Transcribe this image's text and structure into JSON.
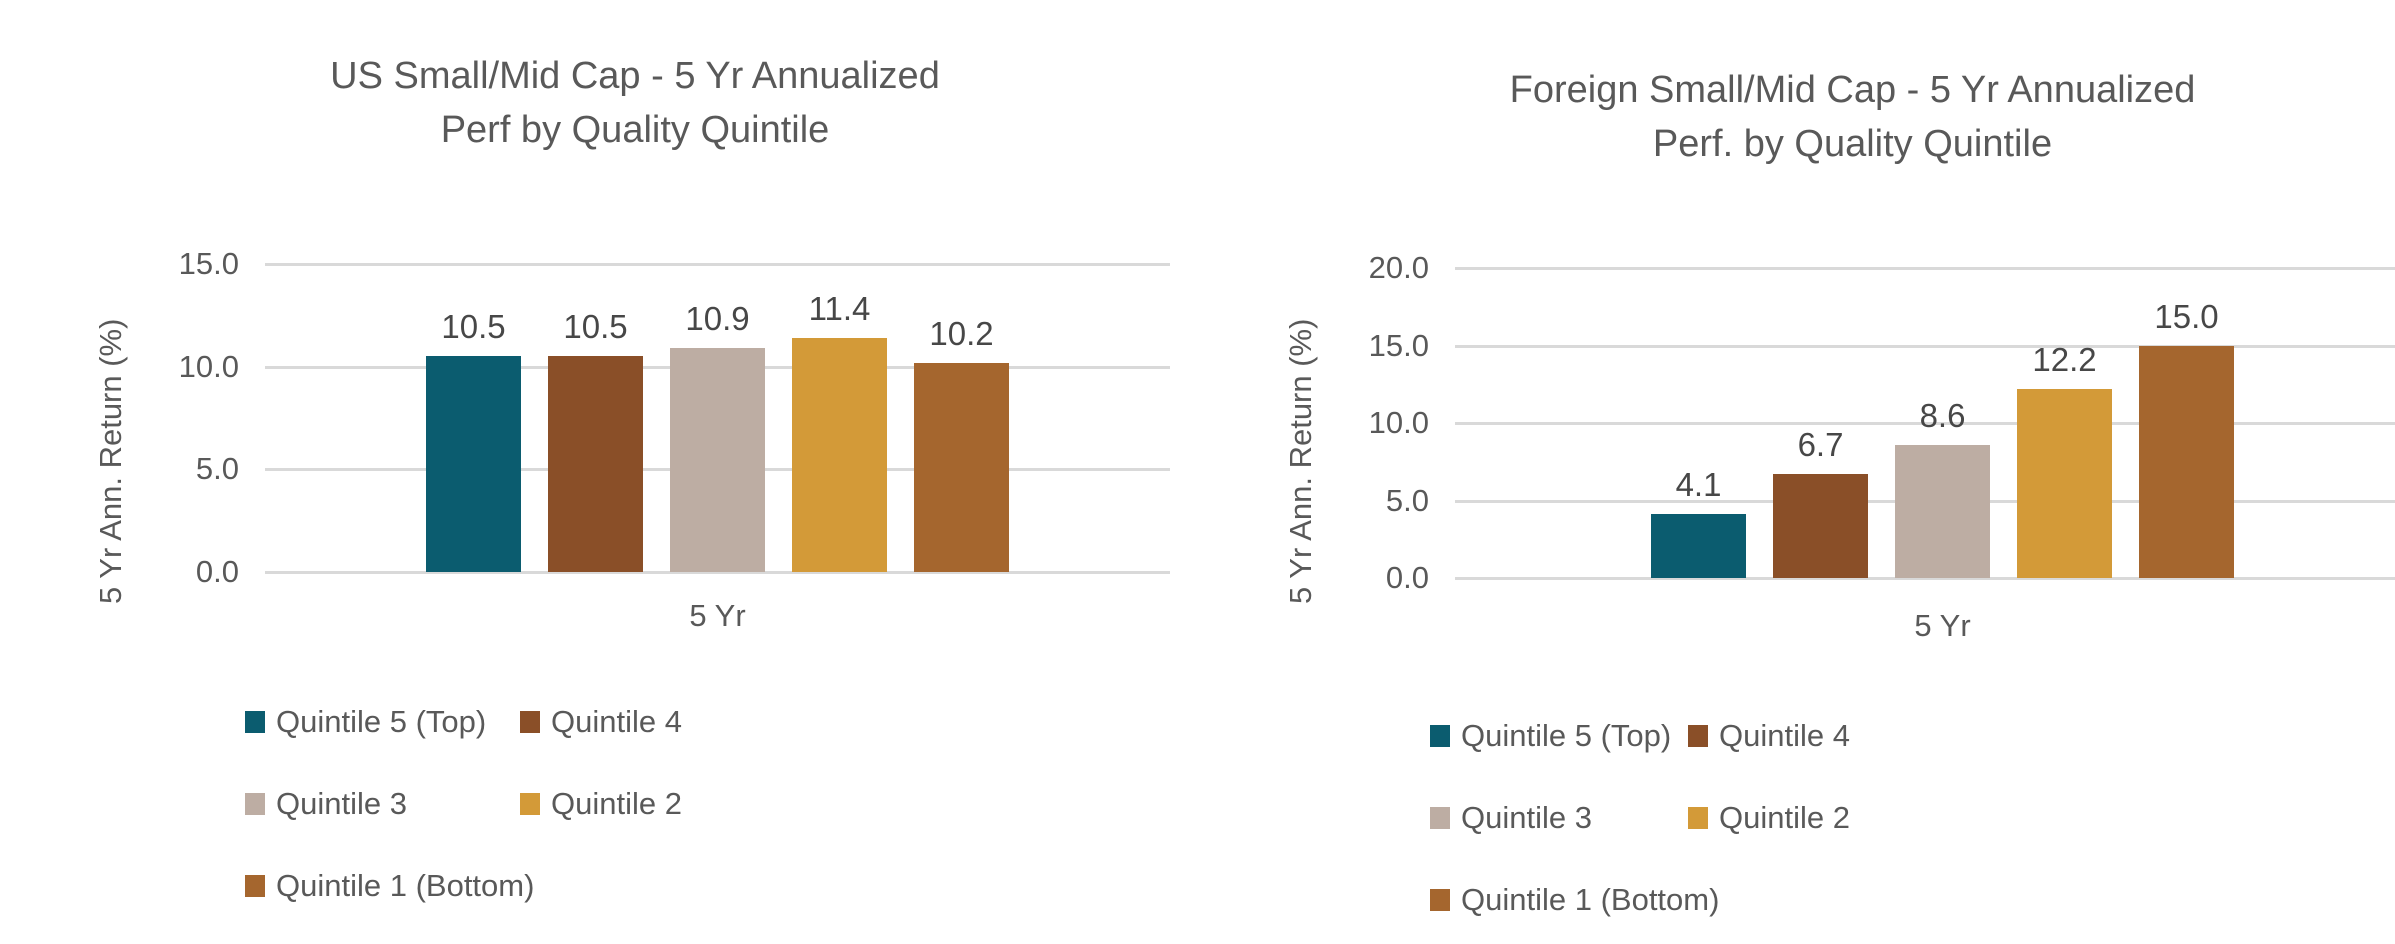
{
  "page": {
    "background": "#ffffff"
  },
  "colors": {
    "quintile_5_top": "#0B5C6F",
    "quintile_4": "#8A4F28",
    "quintile_3": "#BDADA3",
    "quintile_2": "#D39A38",
    "quintile_1_bottom": "#A5662E",
    "axis_text": "#595959",
    "data_label_text": "#474747",
    "gridline": "#D9D9D9"
  },
  "chart_data": [
    {
      "type": "bar",
      "title": "US Small/Mid Cap - 5 Yr Annualized Perf by Quality Quintile",
      "title_lines": [
        "US Small/Mid Cap - 5 Yr Annualized",
        "Perf by Quality Quintile"
      ],
      "xlabel": "5 Yr",
      "ylabel": "5 Yr Ann. Return (%)",
      "categories": [
        "5 Yr"
      ],
      "ylim": [
        0,
        15
      ],
      "ytick_labels": [
        "15.0",
        "10.0",
        "5.0",
        "0.0"
      ],
      "grid": true,
      "legend_position": "bottom",
      "series": [
        {
          "name": "Quintile 5 (Top)",
          "values": [
            10.5
          ],
          "data_labels": [
            "10.5"
          ],
          "color": "#0B5C6F"
        },
        {
          "name": "Quintile 4",
          "values": [
            10.5
          ],
          "data_labels": [
            "10.5"
          ],
          "color": "#8A4F28"
        },
        {
          "name": "Quintile 3",
          "values": [
            10.9
          ],
          "data_labels": [
            "10.9"
          ],
          "color": "#BDADA3"
        },
        {
          "name": "Quintile 2",
          "values": [
            11.4
          ],
          "data_labels": [
            "11.4"
          ],
          "color": "#D39A38"
        },
        {
          "name": "Quintile 1 (Bottom)",
          "values": [
            10.2
          ],
          "data_labels": [
            "10.2"
          ],
          "color": "#A5662E"
        }
      ]
    },
    {
      "type": "bar",
      "title": "Foreign Small/Mid Cap - 5 Yr Annualized Perf. by Quality Quintile",
      "title_lines": [
        "Foreign Small/Mid Cap - 5 Yr Annualized",
        "Perf. by Quality Quintile"
      ],
      "xlabel": "5 Yr",
      "ylabel": "5 Yr Ann. Return (%)",
      "categories": [
        "5 Yr"
      ],
      "ylim": [
        0,
        20
      ],
      "ytick_labels": [
        "20.0",
        "15.0",
        "10.0",
        "5.0",
        "0.0"
      ],
      "grid": true,
      "legend_position": "bottom",
      "series": [
        {
          "name": "Quintile 5 (Top)",
          "values": [
            4.1
          ],
          "data_labels": [
            "4.1"
          ],
          "color": "#0B5C6F"
        },
        {
          "name": "Quintile 4",
          "values": [
            6.7
          ],
          "data_labels": [
            "6.7"
          ],
          "color": "#8A4F28"
        },
        {
          "name": "Quintile 3",
          "values": [
            8.6
          ],
          "data_labels": [
            "8.6"
          ],
          "color": "#BDADA3"
        },
        {
          "name": "Quintile 2",
          "values": [
            12.2
          ],
          "data_labels": [
            "12.2"
          ],
          "color": "#D39A38"
        },
        {
          "name": "Quintile 1 (Bottom)",
          "values": [
            15.0
          ],
          "data_labels": [
            "15.0"
          ],
          "color": "#A5662E"
        }
      ]
    }
  ]
}
